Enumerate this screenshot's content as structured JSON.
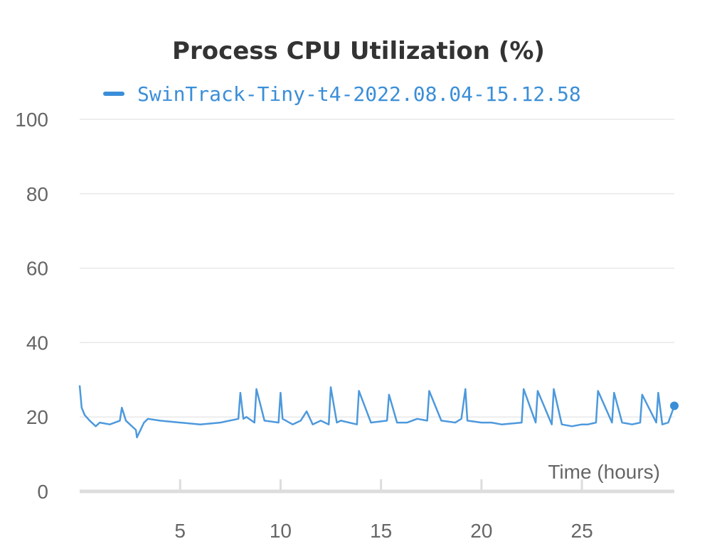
{
  "chart_data": {
    "type": "line",
    "title": "Process CPU Utilization (%)",
    "xlabel": "Time (hours)",
    "ylabel": "",
    "xlim": [
      0,
      29.6
    ],
    "ylim": [
      0,
      100
    ],
    "xticks": [
      5,
      10,
      15,
      20,
      25
    ],
    "yticks": [
      0,
      20,
      40,
      60,
      80,
      100
    ],
    "grid": true,
    "legend": "top-center",
    "series": [
      {
        "name": "SwinTrack-Tiny-t4-2022.08.04-15.12.58",
        "color": "#3a8ed8",
        "x": [
          0.0,
          0.1,
          0.25,
          0.5,
          0.8,
          1.0,
          1.5,
          2.0,
          2.1,
          2.3,
          2.8,
          2.85,
          3.2,
          3.4,
          4.0,
          5.0,
          6.0,
          7.0,
          7.9,
          8.0,
          8.15,
          8.3,
          8.7,
          8.8,
          9.2,
          9.9,
          10.0,
          10.1,
          10.6,
          11.0,
          11.3,
          11.6,
          12.0,
          12.4,
          12.5,
          12.8,
          13.0,
          13.8,
          13.9,
          14.5,
          15.3,
          15.4,
          15.8,
          16.3,
          16.8,
          17.3,
          17.4,
          18.0,
          18.7,
          19.0,
          19.2,
          19.3,
          20.0,
          20.5,
          21.0,
          22.0,
          22.1,
          22.7,
          22.8,
          23.5,
          23.6,
          24.0,
          24.5,
          25.0,
          25.3,
          25.7,
          25.8,
          26.5,
          26.6,
          27.0,
          27.5,
          27.9,
          28.0,
          28.7,
          28.8,
          29.0,
          29.3,
          29.6
        ],
        "y": [
          28.5,
          22.5,
          20.5,
          19.0,
          17.5,
          18.5,
          18.0,
          19.0,
          22.5,
          19.0,
          16.5,
          14.5,
          18.5,
          19.5,
          19.0,
          18.5,
          18.0,
          18.5,
          19.5,
          26.5,
          19.5,
          20.0,
          18.5,
          27.5,
          19.0,
          18.5,
          26.5,
          19.5,
          18.0,
          19.0,
          21.5,
          18.0,
          19.0,
          18.0,
          28.0,
          18.5,
          19.0,
          18.0,
          27.0,
          18.5,
          19.0,
          26.0,
          18.5,
          18.5,
          19.5,
          19.0,
          27.0,
          19.0,
          18.5,
          19.5,
          27.5,
          19.0,
          18.5,
          18.5,
          18.0,
          18.5,
          27.5,
          18.5,
          27.0,
          18.0,
          27.5,
          18.0,
          17.5,
          18.0,
          18.0,
          18.5,
          27.0,
          18.5,
          26.5,
          18.5,
          18.0,
          18.5,
          26.0,
          18.5,
          26.5,
          18.0,
          18.5,
          23.0
        ]
      }
    ]
  }
}
